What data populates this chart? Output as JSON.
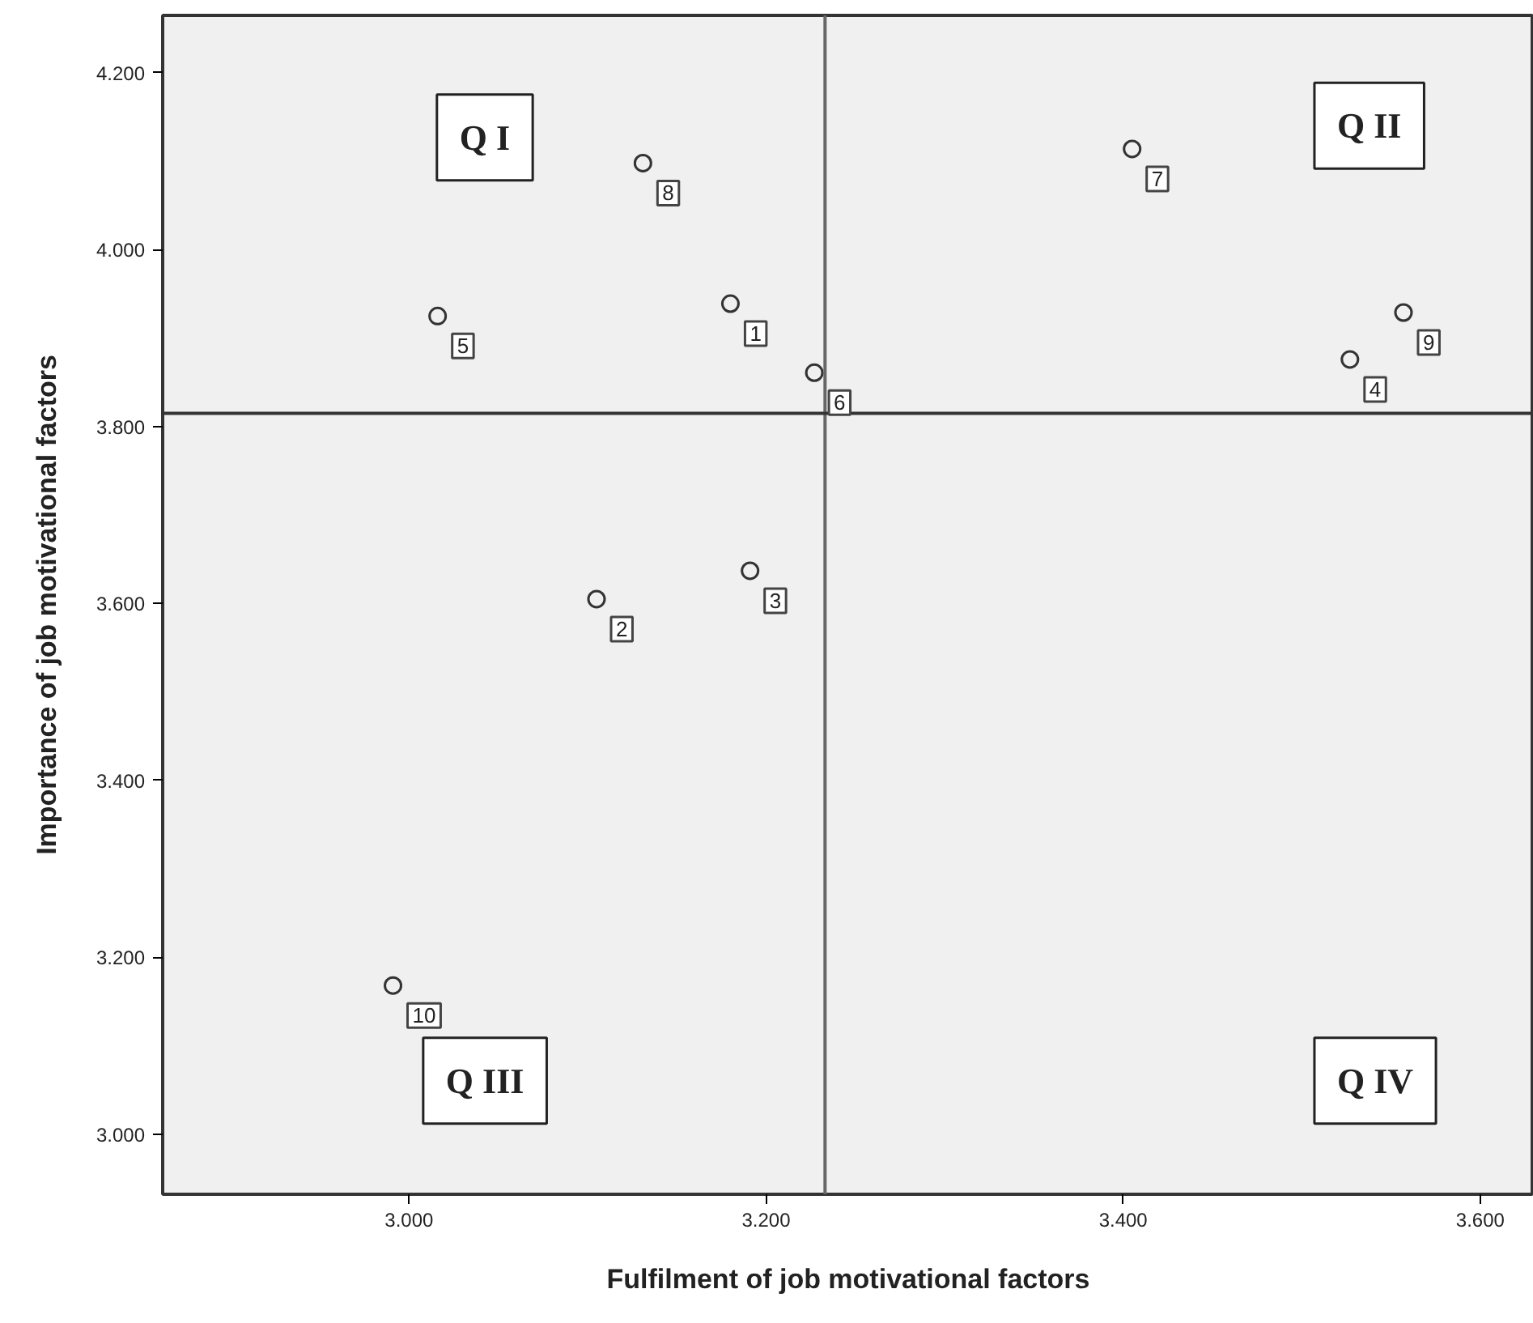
{
  "chart_data": {
    "type": "scatter",
    "xlabel": "Fulfilment of job motivational factors",
    "ylabel": "Importance of job motivational factors",
    "x": [
      3.18,
      3.105,
      3.191,
      3.527,
      3.016,
      3.227,
      3.405,
      3.131,
      3.557,
      2.991
    ],
    "values": [
      3.939,
      3.605,
      3.637,
      3.876,
      3.925,
      3.861,
      4.114,
      4.098,
      3.929,
      3.168
    ],
    "color": "#333333",
    "marker": "circle",
    "xlim": [
      2.862,
      3.63
    ],
    "ylim": [
      2.932,
      4.265
    ],
    "xticks": [
      {
        "value": 3.0,
        "label": "3.000"
      },
      {
        "value": 3.2,
        "label": "3.200"
      },
      {
        "value": 3.4,
        "label": "3.400"
      },
      {
        "value": 3.6,
        "label": "3.600"
      }
    ],
    "yticks": [
      {
        "value": 3.0,
        "label": "3.000"
      },
      {
        "value": 3.2,
        "label": "3.200"
      },
      {
        "value": 3.4,
        "label": "3.400"
      },
      {
        "value": 3.6,
        "label": "3.600"
      },
      {
        "value": 3.8,
        "label": "3.800"
      },
      {
        "value": 4.0,
        "label": "4.000"
      },
      {
        "value": 4.2,
        "label": "4.200"
      }
    ],
    "ref_lines": [
      {
        "axis": "x",
        "value": 3.233,
        "color": "#666666"
      },
      {
        "axis": "y",
        "value": 3.815,
        "color": "#333333"
      }
    ],
    "annotations": [
      "Q I",
      "Q II",
      "Q III",
      "Q IV",
      {
        "text": "1",
        "x": 3.18,
        "y": 3.939
      },
      {
        "text": "2",
        "x": 3.105,
        "y": 3.605
      },
      {
        "text": "3",
        "x": 3.191,
        "y": 3.637
      },
      {
        "text": "4",
        "x": 3.527,
        "y": 3.876
      },
      {
        "text": "5",
        "x": 3.016,
        "y": 3.925
      },
      {
        "text": "6",
        "x": 3.227,
        "y": 3.861
      },
      {
        "text": "7",
        "x": 3.405,
        "y": 4.114
      },
      {
        "text": "8",
        "x": 3.131,
        "y": 4.098
      },
      {
        "text": "9",
        "x": 3.557,
        "y": 3.929
      },
      {
        "text": "10",
        "x": 2.991,
        "y": 3.168
      }
    ],
    "grid": false
  }
}
